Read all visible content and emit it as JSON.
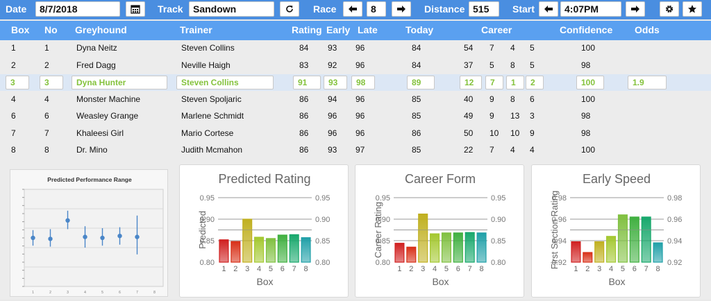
{
  "toolbar": {
    "date_label": "Date",
    "date_value": "8/7/2018",
    "calendar_icon": "calendar-icon",
    "track_label": "Track",
    "track_value": "Sandown",
    "refresh_icon": "refresh-icon",
    "race_label": "Race",
    "race_value": "8",
    "prev_icon": "arrow-left-icon",
    "next_icon": "arrow-right-icon",
    "distance_label": "Distance",
    "distance_value": "515",
    "start_label": "Start",
    "start_value": "4:07PM",
    "settings_icon": "gear-icon",
    "favorite_icon": "star-icon"
  },
  "table": {
    "headers": [
      "Box",
      "No",
      "Greyhound",
      "Trainer",
      "Rating",
      "Early",
      "Late",
      "Today",
      "Career",
      "Confidence",
      "Odds"
    ],
    "rows": [
      {
        "box": "1",
        "no": "1",
        "dog": "Dyna Neitz",
        "trainer": "Steven Collins",
        "rating": "84",
        "early": "93",
        "late": "96",
        "today": "84",
        "c1": "54",
        "c2": "7",
        "c3": "4",
        "c4": "5",
        "conf": "100",
        "odds": ""
      },
      {
        "box": "2",
        "no": "2",
        "dog": "Fred Dagg",
        "trainer": "Neville Haigh",
        "rating": "83",
        "early": "92",
        "late": "96",
        "today": "84",
        "c1": "37",
        "c2": "5",
        "c3": "8",
        "c4": "5",
        "conf": "98",
        "odds": ""
      },
      {
        "box": "3",
        "no": "3",
        "dog": "Dyna Hunter",
        "trainer": "Steven Collins",
        "rating": "91",
        "early": "93",
        "late": "98",
        "today": "89",
        "c1": "12",
        "c2": "7",
        "c3": "1",
        "c4": "2",
        "conf": "100",
        "odds": "1.9"
      },
      {
        "box": "4",
        "no": "4",
        "dog": "Monster Machine",
        "trainer": "Steven Spoljaric",
        "rating": "86",
        "early": "94",
        "late": "96",
        "today": "85",
        "c1": "40",
        "c2": "9",
        "c3": "8",
        "c4": "6",
        "conf": "100",
        "odds": ""
      },
      {
        "box": "6",
        "no": "6",
        "dog": "Weasley Grange",
        "trainer": "Marlene Schmidt",
        "rating": "86",
        "early": "96",
        "late": "96",
        "today": "85",
        "c1": "49",
        "c2": "9",
        "c3": "13",
        "c4": "3",
        "conf": "98",
        "odds": ""
      },
      {
        "box": "7",
        "no": "7",
        "dog": "Khaleesi Girl",
        "trainer": "Mario Cortese",
        "rating": "86",
        "early": "96",
        "late": "96",
        "today": "86",
        "c1": "50",
        "c2": "10",
        "c3": "10",
        "c4": "9",
        "conf": "98",
        "odds": ""
      },
      {
        "box": "8",
        "no": "8",
        "dog": "Dr. Mino",
        "trainer": "Judith Mcmahon",
        "rating": "86",
        "early": "93",
        "late": "97",
        "today": "85",
        "c1": "22",
        "c2": "7",
        "c3": "4",
        "c4": "4",
        "conf": "100",
        "odds": ""
      }
    ],
    "selected_index": 2
  },
  "chart_data": [
    {
      "type": "scatter",
      "title": "Predicted Performance Range",
      "x": [
        1,
        2,
        3,
        4,
        5,
        6,
        7
      ],
      "y": [
        0.5,
        0.49,
        0.68,
        0.51,
        0.5,
        0.52,
        0.51
      ],
      "err_low": [
        0.42,
        0.41,
        0.59,
        0.4,
        0.42,
        0.43,
        0.33
      ],
      "err_high": [
        0.58,
        0.59,
        0.78,
        0.62,
        0.6,
        0.61,
        0.73
      ],
      "xticks": [
        "1",
        "2",
        "3",
        "4",
        "5",
        "6",
        "7",
        "8"
      ],
      "grid": true
    },
    {
      "type": "bar",
      "title": "Predicted Rating",
      "categories": [
        "1",
        "2",
        "3",
        "4",
        "5",
        "6",
        "7",
        "8"
      ],
      "values": [
        0.852,
        0.848,
        0.9,
        0.858,
        0.855,
        0.863,
        0.864,
        0.857
      ],
      "colors": [
        "#d02020",
        "#d83018",
        "#c0b020",
        "#a4c830",
        "#80c040",
        "#40b040",
        "#18a86c",
        "#20a0a8"
      ],
      "xlabel": "Box",
      "ylabel": "Predicted",
      "ylim": [
        0.8,
        0.95
      ],
      "yticks": [
        "0.80",
        "0.85",
        "0.90",
        "0.95"
      ],
      "grid": true
    },
    {
      "type": "bar",
      "title": "Career Form",
      "categories": [
        "1",
        "2",
        "3",
        "4",
        "5",
        "6",
        "7",
        "8"
      ],
      "values": [
        0.844,
        0.835,
        0.912,
        0.866,
        0.868,
        0.868,
        0.869,
        0.868
      ],
      "colors": [
        "#d02020",
        "#d83018",
        "#c0b020",
        "#a4c830",
        "#80c040",
        "#40b040",
        "#18a86c",
        "#20a0a8"
      ],
      "xlabel": "Box",
      "ylabel": "Career Rating",
      "ylim": [
        0.8,
        0.95
      ],
      "yticks": [
        "0.80",
        "0.85",
        "0.90",
        "0.95"
      ],
      "grid": true
    },
    {
      "type": "bar",
      "title": "Early Speed",
      "categories": [
        "1",
        "2",
        "3",
        "4",
        "5",
        "6",
        "7",
        "8"
      ],
      "values": [
        0.939,
        0.929,
        0.939,
        0.944,
        0.964,
        0.962,
        0.962,
        0.938
      ],
      "colors": [
        "#d02020",
        "#d83018",
        "#c0b020",
        "#a4c830",
        "#80c040",
        "#40b040",
        "#18a86c",
        "#20a0a8"
      ],
      "xlabel": "Box",
      "ylabel": "First Section Rating",
      "ylim": [
        0.92,
        0.98
      ],
      "yticks": [
        "0.92",
        "0.94",
        "0.96",
        "0.98"
      ],
      "grid": true
    }
  ]
}
